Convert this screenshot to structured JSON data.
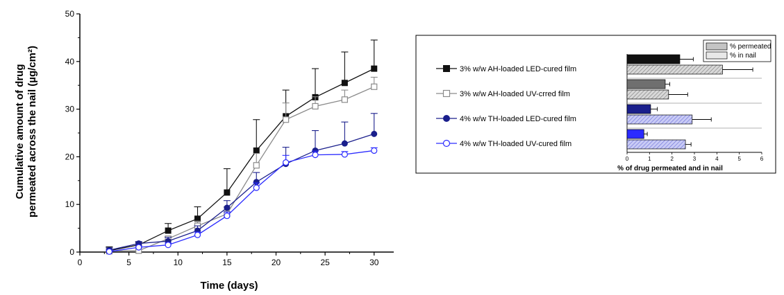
{
  "chart_data": [
    {
      "type": "line",
      "xlabel": "Time (days)",
      "ylabel_line1": "Cumulative amount of drug",
      "ylabel_line2": "permeated across the nail (µg/cm²)",
      "xlim": [
        0,
        32
      ],
      "ylim": [
        0,
        50
      ],
      "xticks": [
        0,
        5,
        10,
        15,
        20,
        25,
        30
      ],
      "yticks": [
        0,
        10,
        20,
        30,
        40,
        50
      ],
      "x": [
        3,
        6,
        9,
        12,
        15,
        18,
        21,
        24,
        27,
        30
      ],
      "series": [
        {
          "name": "3% w/w AH-loaded LED-cured film",
          "color": "#111111",
          "marker": "square-filled",
          "values": [
            0.3,
            1.5,
            4.5,
            7.0,
            12.5,
            21.3,
            28.5,
            32.5,
            35.5,
            38.5
          ],
          "errors": [
            0.8,
            0.6,
            1.5,
            2.5,
            5.0,
            6.5,
            5.5,
            6.0,
            6.5,
            6.0
          ]
        },
        {
          "name": "3% w/w AH-loaded UV-crred film",
          "color": "#8a8a8a",
          "marker": "square-open",
          "values": [
            0.2,
            0.3,
            2.8,
            5.5,
            8.0,
            18.2,
            27.8,
            30.6,
            32.0,
            34.7
          ],
          "errors": [
            0.3,
            0.3,
            0.5,
            1.0,
            1.5,
            2.5,
            3.5,
            2.0,
            2.0,
            2.0
          ]
        },
        {
          "name": "4% w/w TH-loaded LED-cured film",
          "color": "#1a1f8c",
          "marker": "circle-filled",
          "values": [
            0.4,
            1.8,
            2.3,
            4.5,
            9.3,
            14.7,
            18.5,
            21.3,
            22.8,
            24.8
          ],
          "errors": [
            0.5,
            0.4,
            0.8,
            1.0,
            1.5,
            2.0,
            3.5,
            4.2,
            4.5,
            4.3
          ]
        },
        {
          "name": "4% w/w TH-loaded UV-cured film",
          "color": "#2b2bff",
          "marker": "circle-open",
          "values": [
            0.1,
            1.0,
            1.5,
            3.6,
            7.6,
            13.5,
            18.8,
            20.4,
            20.5,
            21.3
          ],
          "errors": [
            0.3,
            0.3,
            0.4,
            0.6,
            0.8,
            1.0,
            1.5,
            0.8,
            0.6,
            0.6
          ]
        }
      ]
    },
    {
      "type": "bar",
      "orientation": "horizontal",
      "xlabel": "% of drug permeated and in nail",
      "xlim": [
        0,
        6
      ],
      "xticks": [
        0,
        1,
        2,
        3,
        4,
        5,
        6
      ],
      "legend": {
        "permeated": "% permeated",
        "in_nail": "% in nail"
      },
      "groups": [
        {
          "name": "3% w/w AH-loaded LED-cured film",
          "permeated": 2.35,
          "permeated_err": 0.6,
          "in_nail": 4.25,
          "in_nail_err": 1.35
        },
        {
          "name": "3% w/w AH-loaded UV-crred film",
          "permeated": 1.7,
          "permeated_err": 0.2,
          "in_nail": 1.85,
          "in_nail_err": 0.85
        },
        {
          "name": "4% w/w TH-loaded LED-cured film",
          "permeated": 1.05,
          "permeated_err": 0.3,
          "in_nail": 2.9,
          "in_nail_err": 0.85
        },
        {
          "name": "4% w/w TH-loaded UV-cured film",
          "permeated": 0.75,
          "permeated_err": 0.15,
          "in_nail": 2.6,
          "in_nail_err": 0.25
        }
      ],
      "colors_permeated": [
        "#111111",
        "#6f6f6f",
        "#1a1f8c",
        "#2b2bff"
      ],
      "colors_in_nail": [
        "#9a9a9a",
        "#bdbdbd",
        "#7f86c9",
        "#a9acf2"
      ]
    }
  ]
}
